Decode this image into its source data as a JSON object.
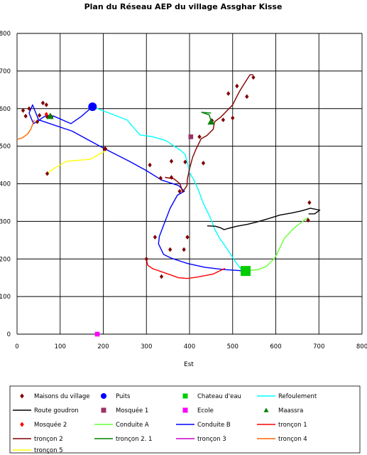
{
  "chart_data": {
    "type": "scatter",
    "title": "Plan du Réseau AEP du village Assghar Kisse",
    "xlabel": "Est",
    "ylabel": "",
    "xlim": [
      0,
      800
    ],
    "ylim": [
      0,
      800
    ],
    "x_ticks": [
      0,
      100,
      200,
      300,
      400,
      500,
      600,
      700,
      800
    ],
    "y_ticks": [
      0,
      100,
      200,
      300,
      400,
      500,
      600,
      700,
      800
    ],
    "grid": true,
    "legend_position": "bottom",
    "series": [
      {
        "name": "Maisons du village",
        "kind": "marker",
        "marker": "diamond",
        "color": "#800000",
        "points": [
          [
            14,
            595
          ],
          [
            28,
            600
          ],
          [
            47,
            565
          ],
          [
            20,
            580
          ],
          [
            52,
            582
          ],
          [
            60,
            615
          ],
          [
            68,
            610
          ],
          [
            70,
            578
          ],
          [
            80,
            578
          ],
          [
            203,
            493
          ],
          [
            70,
            427
          ],
          [
            205,
            493
          ],
          [
            308,
            450
          ],
          [
            333,
            415
          ],
          [
            358,
            417
          ],
          [
            358,
            460
          ],
          [
            377,
            380
          ],
          [
            390,
            458
          ],
          [
            432,
            455
          ],
          [
            423,
            525
          ],
          [
            450,
            565
          ],
          [
            452,
            568
          ],
          [
            478,
            570
          ],
          [
            490,
            640
          ],
          [
            500,
            575
          ],
          [
            510,
            660
          ],
          [
            533,
            632
          ],
          [
            548,
            683
          ],
          [
            678,
            350
          ],
          [
            675,
            303
          ],
          [
            320,
            258
          ],
          [
            355,
            225
          ],
          [
            387,
            225
          ],
          [
            395,
            258
          ],
          [
            300,
            200
          ],
          [
            335,
            153
          ]
        ]
      },
      {
        "name": "Puits",
        "kind": "marker",
        "marker": "circle",
        "color": "#0000ff",
        "points": [
          [
            175,
            605
          ]
        ]
      },
      {
        "name": "Chateau d'eau",
        "kind": "marker",
        "marker": "square",
        "color": "#00cc00",
        "points": [
          [
            530,
            168
          ]
        ]
      },
      {
        "name": "Refoulement",
        "kind": "line",
        "color": "#00ffff",
        "points": [
          [
            175,
            605
          ],
          [
            255,
            570
          ],
          [
            285,
            530
          ],
          [
            315,
            525
          ],
          [
            345,
            515
          ],
          [
            378,
            490
          ],
          [
            390,
            478
          ],
          [
            395,
            455
          ],
          [
            400,
            430
          ],
          [
            410,
            410
          ],
          [
            420,
            385
          ],
          [
            432,
            348
          ],
          [
            448,
            310
          ],
          [
            455,
            290
          ],
          [
            458,
            280
          ],
          [
            470,
            255
          ],
          [
            490,
            222
          ],
          [
            508,
            190
          ],
          [
            520,
            172
          ],
          [
            530,
            168
          ]
        ]
      },
      {
        "name": "Route goudron",
        "kind": "line",
        "color": "#000000",
        "points": [
          [
            441,
            288
          ],
          [
            460,
            287
          ],
          [
            472,
            283
          ],
          [
            480,
            278
          ],
          [
            492,
            282
          ],
          [
            510,
            287
          ],
          [
            534,
            292
          ],
          [
            555,
            298
          ],
          [
            582,
            307
          ],
          [
            610,
            317
          ],
          [
            636,
            322
          ],
          [
            660,
            328
          ],
          [
            680,
            335
          ],
          [
            702,
            330
          ],
          [
            690,
            320
          ],
          [
            676,
            320
          ]
        ]
      },
      {
        "name": "Mosquée 1",
        "kind": "marker",
        "marker": "square",
        "color": "#993366",
        "points": [
          [
            403,
            525
          ]
        ]
      },
      {
        "name": "Ecole",
        "kind": "marker",
        "marker": "square",
        "color": "#ff00ff",
        "points": [
          [
            186,
            0
          ]
        ]
      },
      {
        "name": "Maassra",
        "kind": "marker",
        "marker": "triangle",
        "color": "#008000",
        "points": [
          [
            450,
            565
          ],
          [
            77,
            580
          ]
        ]
      },
      {
        "name": "Mosquée 2",
        "kind": "marker",
        "marker": "diamond",
        "color": "#ff0000",
        "points": [
          [
            68,
            585
          ]
        ]
      },
      {
        "name": "Conduite A",
        "kind": "line",
        "color": "#66ff33",
        "points": [
          [
            530,
            168
          ],
          [
            560,
            172
          ],
          [
            578,
            180
          ],
          [
            598,
            203
          ],
          [
            620,
            255
          ],
          [
            640,
            280
          ],
          [
            668,
            305
          ],
          [
            675,
            310
          ]
        ]
      },
      {
        "name": "Conduite B",
        "kind": "line",
        "color": "#0000ff",
        "points": [
          [
            175,
            605
          ],
          [
            150,
            580
          ],
          [
            125,
            560
          ],
          [
            85,
            580
          ],
          [
            68,
            582
          ],
          [
            58,
            575
          ],
          [
            50,
            568
          ],
          [
            38,
            560
          ],
          [
            28,
            588
          ],
          [
            36,
            610
          ],
          [
            50,
            570
          ],
          [
            128,
            540
          ],
          [
            200,
            495
          ],
          [
            260,
            460
          ],
          [
            300,
            435
          ],
          [
            335,
            410
          ],
          [
            375,
            395
          ],
          [
            388,
            380
          ],
          [
            372,
            370
          ],
          [
            355,
            335
          ],
          [
            340,
            290
          ],
          [
            330,
            260
          ],
          [
            328,
            240
          ],
          [
            340,
            212
          ],
          [
            358,
            202
          ],
          [
            395,
            188
          ],
          [
            435,
            178
          ],
          [
            478,
            172
          ],
          [
            530,
            168
          ]
        ]
      },
      {
        "name": "tronçon 1",
        "kind": "line",
        "color": "#ff0000",
        "points": [
          [
            300,
            200
          ],
          [
            303,
            183
          ],
          [
            315,
            174
          ],
          [
            345,
            162
          ],
          [
            375,
            150
          ],
          [
            395,
            148
          ],
          [
            420,
            152
          ],
          [
            455,
            160
          ],
          [
            482,
            175
          ]
        ]
      },
      {
        "name": "tronçon 2",
        "kind": "line",
        "color": "#800000",
        "points": [
          [
            343,
            417
          ],
          [
            364,
            413
          ],
          [
            378,
            400
          ],
          [
            384,
            378
          ],
          [
            394,
            395
          ],
          [
            395,
            412
          ],
          [
            400,
            440
          ],
          [
            407,
            470
          ],
          [
            415,
            492
          ],
          [
            427,
            520
          ],
          [
            440,
            528
          ],
          [
            455,
            545
          ],
          [
            458,
            565
          ],
          [
            473,
            578
          ],
          [
            500,
            610
          ],
          [
            510,
            633
          ],
          [
            518,
            650
          ],
          [
            540,
            690
          ],
          [
            548,
            690
          ]
        ]
      },
      {
        "name": "tronçon 2. 1",
        "kind": "line",
        "color": "#008000",
        "points": [
          [
            450,
            565
          ],
          [
            446,
            583
          ],
          [
            428,
            590
          ],
          [
            450,
            588
          ]
        ]
      },
      {
        "name": "tronçon 3",
        "kind": "line",
        "color": "#cc00cc",
        "points": []
      },
      {
        "name": "tronçon 4",
        "kind": "line",
        "color": "#ff6600",
        "points": [
          [
            0,
            518
          ],
          [
            12,
            522
          ],
          [
            24,
            532
          ],
          [
            32,
            545
          ],
          [
            40,
            570
          ]
        ]
      },
      {
        "name": "tronçon 5",
        "kind": "line",
        "color": "#ffff00",
        "points": [
          [
            70,
            427
          ],
          [
            85,
            440
          ],
          [
            115,
            460
          ],
          [
            170,
            465
          ],
          [
            205,
            488
          ]
        ]
      }
    ]
  }
}
